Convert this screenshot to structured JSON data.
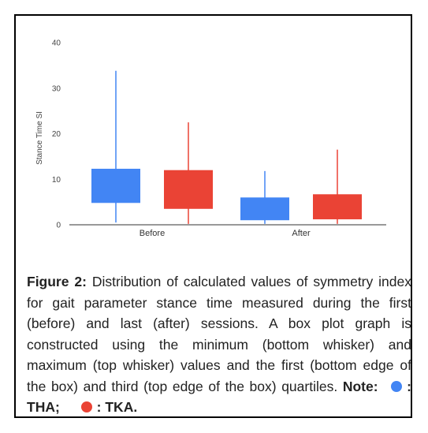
{
  "chart_data": {
    "type": "boxplot",
    "categories": [
      "Before",
      "After"
    ],
    "ylabel": "Stance Time SI",
    "ylim": [
      0,
      40
    ],
    "yticks": [
      0,
      10,
      20,
      30,
      40
    ],
    "grid": false,
    "series": [
      {
        "name": "THA",
        "color": "#4285f4",
        "boxes": [
          {
            "category": "Before",
            "min": 0.5,
            "q1": 4.8,
            "q3": 12.3,
            "max": 33.8
          },
          {
            "category": "After",
            "min": 0.2,
            "q1": 1.0,
            "q3": 6.0,
            "max": 11.8
          }
        ]
      },
      {
        "name": "TKA",
        "color": "#ea4335",
        "boxes": [
          {
            "category": "Before",
            "min": 0.2,
            "q1": 3.5,
            "q3": 12.0,
            "max": 22.5
          },
          {
            "category": "After",
            "min": 0.2,
            "q1": 1.2,
            "q3": 6.7,
            "max": 16.5
          }
        ]
      }
    ]
  },
  "caption": {
    "figure_label": "Figure 2:",
    "text": " Distribution of calculated values of symmetry index for gait parameter stance time measured during the first (before) and last (after) sessions. A box plot graph is constructed using the minimum (bottom whisker) and maximum (top whisker) values and the first (bottom edge of the box) and third (top edge of the box) quartiles. ",
    "note_label": "Note:",
    "legend": [
      {
        "label": ": THA;",
        "color": "#4285f4"
      },
      {
        "label": ": TKA.",
        "color": "#ea4335"
      }
    ]
  }
}
